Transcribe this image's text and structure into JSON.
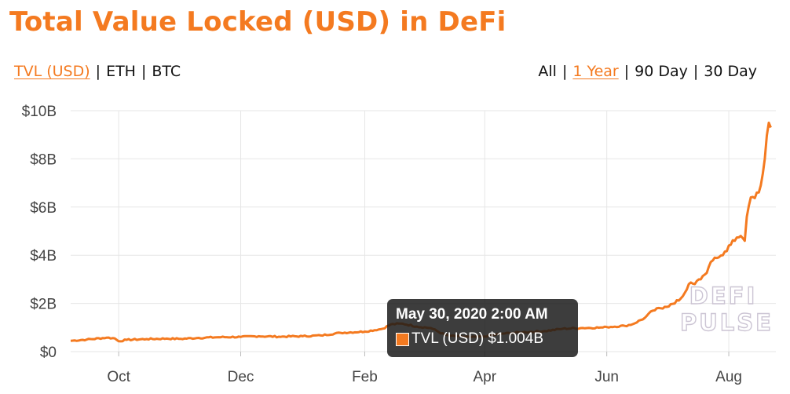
{
  "title": "Total Value Locked (USD) in DeFi",
  "metric_tabs": [
    {
      "label": "TVL (USD)",
      "active": true
    },
    {
      "label": "ETH",
      "active": false
    },
    {
      "label": "BTC",
      "active": false
    }
  ],
  "range_tabs": [
    {
      "label": "All",
      "active": false
    },
    {
      "label": "1 Year",
      "active": true
    },
    {
      "label": "90 Day",
      "active": false
    },
    {
      "label": "30 Day",
      "active": false
    }
  ],
  "separator": "|",
  "watermark": {
    "line1": "DEFI",
    "line2": "PULSE"
  },
  "tooltip": {
    "date": "May 30, 2020 2:00 AM",
    "series": "TVL (USD)",
    "value": "$1.004B"
  },
  "colors": {
    "accent": "#f47a20",
    "line": "#f47a20",
    "grid": "#e6e6e6",
    "tooltip_bg": "#181818"
  },
  "chart_data": {
    "type": "line",
    "title": "Total Value Locked (USD) in DeFi",
    "xlabel": "",
    "ylabel": "",
    "x_type": "date",
    "x_range": [
      "2019-09-07",
      "2020-08-21"
    ],
    "ylim": [
      0,
      10
    ],
    "y_unit": "billions USD",
    "yticks": [
      {
        "value": 0,
        "label": "$0"
      },
      {
        "value": 2,
        "label": "$2B"
      },
      {
        "value": 4,
        "label": "$4B"
      },
      {
        "value": 6,
        "label": "$6B"
      },
      {
        "value": 8,
        "label": "$8B"
      },
      {
        "value": 10,
        "label": "$10B"
      }
    ],
    "xticks": [
      {
        "date": "2019-10-01",
        "label": "Oct"
      },
      {
        "date": "2019-12-01",
        "label": "Dec"
      },
      {
        "date": "2020-02-01",
        "label": "Feb"
      },
      {
        "date": "2020-04-01",
        "label": "Apr"
      },
      {
        "date": "2020-06-01",
        "label": "Jun"
      },
      {
        "date": "2020-08-01",
        "label": "Aug"
      }
    ],
    "grid": true,
    "legend": "none",
    "series": [
      {
        "name": "TVL (USD)",
        "points": [
          [
            "2019-09-07",
            0.45
          ],
          [
            "2019-09-15",
            0.5
          ],
          [
            "2019-09-25",
            0.58
          ],
          [
            "2019-09-29",
            0.55
          ],
          [
            "2019-10-01",
            0.43
          ],
          [
            "2019-10-05",
            0.49
          ],
          [
            "2019-10-15",
            0.52
          ],
          [
            "2019-10-25",
            0.54
          ],
          [
            "2019-11-01",
            0.53
          ],
          [
            "2019-11-10",
            0.57
          ],
          [
            "2019-11-20",
            0.6
          ],
          [
            "2019-12-01",
            0.61
          ],
          [
            "2019-12-10",
            0.64
          ],
          [
            "2019-12-20",
            0.62
          ],
          [
            "2020-01-01",
            0.64
          ],
          [
            "2020-01-10",
            0.67
          ],
          [
            "2020-01-20",
            0.78
          ],
          [
            "2020-02-01",
            0.83
          ],
          [
            "2020-02-10",
            0.95
          ],
          [
            "2020-02-14",
            1.13
          ],
          [
            "2020-02-20",
            1.16
          ],
          [
            "2020-02-27",
            1.04
          ],
          [
            "2020-03-05",
            0.98
          ],
          [
            "2020-03-12",
            0.7
          ],
          [
            "2020-03-15",
            0.65
          ],
          [
            "2020-03-25",
            0.6
          ],
          [
            "2020-04-01",
            0.63
          ],
          [
            "2020-04-10",
            0.75
          ],
          [
            "2020-04-20",
            0.8
          ],
          [
            "2020-05-01",
            0.85
          ],
          [
            "2020-05-10",
            0.95
          ],
          [
            "2020-05-20",
            0.98
          ],
          [
            "2020-05-30",
            1.0
          ],
          [
            "2020-06-01",
            1.02
          ],
          [
            "2020-06-10",
            1.07
          ],
          [
            "2020-06-14",
            1.14
          ],
          [
            "2020-06-20",
            1.4
          ],
          [
            "2020-06-24",
            1.7
          ],
          [
            "2020-06-30",
            1.86
          ],
          [
            "2020-07-05",
            2.0
          ],
          [
            "2020-07-09",
            2.3
          ],
          [
            "2020-07-12",
            2.8
          ],
          [
            "2020-07-15",
            2.8
          ],
          [
            "2020-07-20",
            3.2
          ],
          [
            "2020-07-25",
            3.9
          ],
          [
            "2020-07-29",
            4.0
          ],
          [
            "2020-08-01",
            4.4
          ],
          [
            "2020-08-04",
            4.6
          ],
          [
            "2020-08-07",
            4.8
          ],
          [
            "2020-08-09",
            4.6
          ],
          [
            "2020-08-10",
            5.6
          ],
          [
            "2020-08-12",
            6.4
          ],
          [
            "2020-08-15",
            6.6
          ],
          [
            "2020-08-17",
            6.9
          ],
          [
            "2020-08-19",
            8.0
          ],
          [
            "2020-08-21",
            9.5
          ],
          [
            "2020-08-22",
            9.3
          ]
        ]
      }
    ]
  }
}
